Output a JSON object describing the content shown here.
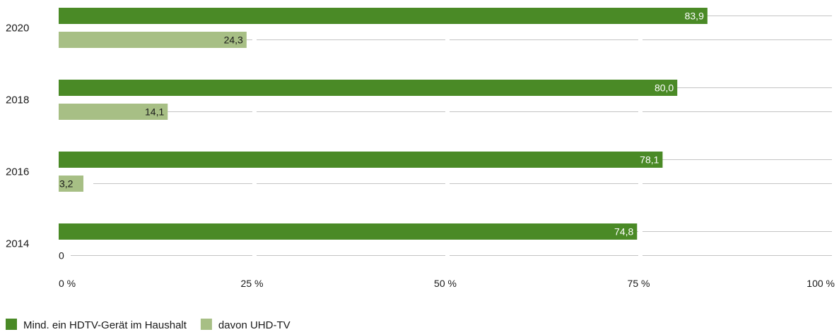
{
  "chart_data": {
    "type": "bar",
    "orientation": "horizontal",
    "categories": [
      "2020",
      "2018",
      "2016",
      "2014"
    ],
    "series": [
      {
        "name": "Mind. ein HDTV-Gerät im Haushalt",
        "color": "#4a8a26",
        "label_color": "#ffffff",
        "values": [
          83.9,
          80.0,
          78.1,
          74.8
        ],
        "labels": [
          "83,9",
          "80,0",
          "78,1",
          "74,8"
        ]
      },
      {
        "name": "davon UHD-TV",
        "color": "#a7bf85",
        "label_color": "#1a1a1a",
        "values": [
          24.3,
          14.1,
          3.2,
          0
        ],
        "labels": [
          "24,3",
          "14,1",
          "3,2",
          "0"
        ]
      }
    ],
    "xlim": [
      0,
      100
    ],
    "xticks": [
      0,
      25,
      50,
      75,
      100
    ],
    "xtick_labels": [
      "0 %",
      "25 %",
      "50 %",
      "75 %",
      "100 %"
    ],
    "grid": true,
    "gridline_color": "#c4c4c4",
    "legend_position": "bottom-left",
    "title": "",
    "xlabel": "",
    "ylabel": ""
  }
}
